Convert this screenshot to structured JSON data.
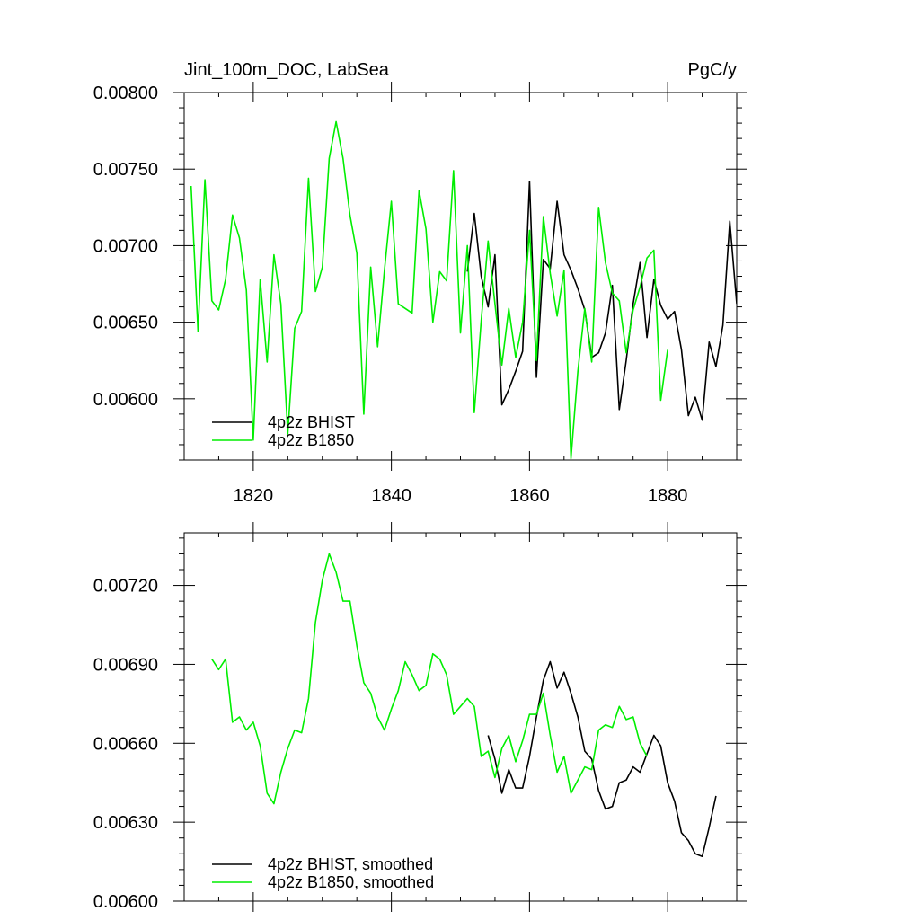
{
  "title_left": "Jint_100m_DOC, LabSea",
  "title_right": "PgC/y",
  "colors": {
    "bhist": "#000000",
    "b1850": "#00ee00"
  },
  "chart_data": [
    {
      "type": "line",
      "title": "Jint_100m_DOC, LabSea",
      "units": "PgC/y",
      "xlim": [
        1810,
        1890
      ],
      "ylim": [
        0.0056,
        0.008
      ],
      "xticks": [
        1820,
        1840,
        1860,
        1880
      ],
      "xtick_labels": [
        "1820",
        "1840",
        "1860",
        "1880"
      ],
      "yticks": [
        0.006,
        0.0065,
        0.007,
        0.0075,
        0.008
      ],
      "ytick_labels": [
        "0.00600",
        "0.00650",
        "0.00700",
        "0.00750",
        "0.00800"
      ],
      "legend_position": "bottom-left",
      "series": [
        {
          "name": "4p2z BHIST",
          "color": "#000000",
          "x": [
            1851,
            1852,
            1853,
            1854,
            1855,
            1856,
            1857,
            1858,
            1859,
            1860,
            1861,
            1862,
            1863,
            1864,
            1865,
            1866,
            1867,
            1868,
            1869,
            1870,
            1871,
            1872,
            1873,
            1874,
            1875,
            1876,
            1877,
            1878,
            1879,
            1880,
            1881,
            1882,
            1883,
            1884,
            1885,
            1886,
            1887,
            1888,
            1889,
            1890
          ],
          "y": [
            0.00683,
            0.00721,
            0.0068,
            0.0066,
            0.00694,
            0.00596,
            0.00606,
            0.00618,
            0.00631,
            0.00742,
            0.00614,
            0.00691,
            0.00685,
            0.00729,
            0.00694,
            0.00684,
            0.00672,
            0.00658,
            0.00627,
            0.0063,
            0.00643,
            0.00674,
            0.00593,
            0.00625,
            0.00662,
            0.00689,
            0.0064,
            0.00678,
            0.00661,
            0.00652,
            0.00657,
            0.00632,
            0.00589,
            0.00601,
            0.00586,
            0.00637,
            0.00621,
            0.00648,
            0.00716,
            0.00662
          ]
        },
        {
          "name": "4p2z B1850",
          "color": "#00ee00",
          "x": [
            1811,
            1812,
            1813,
            1814,
            1815,
            1816,
            1817,
            1818,
            1819,
            1820,
            1821,
            1822,
            1823,
            1824,
            1825,
            1826,
            1827,
            1828,
            1829,
            1830,
            1831,
            1832,
            1833,
            1834,
            1835,
            1836,
            1837,
            1838,
            1839,
            1840,
            1841,
            1842,
            1843,
            1844,
            1845,
            1846,
            1847,
            1848,
            1849,
            1850,
            1851,
            1852,
            1853,
            1854,
            1855,
            1856,
            1857,
            1858,
            1859,
            1860,
            1861,
            1862,
            1863,
            1864,
            1865,
            1866,
            1867,
            1868,
            1869,
            1870,
            1871,
            1872,
            1873,
            1874,
            1875,
            1876,
            1877,
            1878,
            1879,
            1880
          ],
          "y": [
            0.00739,
            0.00644,
            0.00743,
            0.00664,
            0.00658,
            0.00678,
            0.0072,
            0.00705,
            0.00671,
            0.00573,
            0.00678,
            0.00624,
            0.00694,
            0.00662,
            0.00577,
            0.00646,
            0.00657,
            0.00744,
            0.0067,
            0.00686,
            0.00757,
            0.00781,
            0.00757,
            0.0072,
            0.00695,
            0.0059,
            0.00686,
            0.00634,
            0.00684,
            0.00729,
            0.00662,
            0.00659,
            0.00656,
            0.00736,
            0.00711,
            0.0065,
            0.00683,
            0.00677,
            0.00749,
            0.00643,
            0.007,
            0.00591,
            0.00651,
            0.00703,
            0.00662,
            0.00622,
            0.00659,
            0.00627,
            0.0065,
            0.0071,
            0.00625,
            0.00719,
            0.00682,
            0.00654,
            0.00684,
            0.00561,
            0.00618,
            0.00659,
            0.00624,
            0.00725,
            0.00689,
            0.00669,
            0.00664,
            0.0063,
            0.00658,
            0.00673,
            0.00692,
            0.00697,
            0.00599,
            0.00632
          ]
        }
      ]
    },
    {
      "type": "line",
      "xlim": [
        1810,
        1890
      ],
      "ylim": [
        0.006,
        0.0074
      ],
      "xticks": [
        1820,
        1840,
        1860,
        1880
      ],
      "yticks": [
        0.006,
        0.0063,
        0.0066,
        0.0069,
        0.0072
      ],
      "ytick_labels": [
        "0.00600",
        "0.00630",
        "0.00660",
        "0.00690",
        "0.00720"
      ],
      "legend_position": "bottom-left",
      "series": [
        {
          "name": "4p2z BHIST, smoothed",
          "color": "#000000",
          "x": [
            1854,
            1855,
            1856,
            1857,
            1858,
            1859,
            1860,
            1861,
            1862,
            1863,
            1864,
            1865,
            1866,
            1867,
            1868,
            1869,
            1870,
            1871,
            1872,
            1873,
            1874,
            1875,
            1876,
            1877,
            1878,
            1879,
            1880,
            1881,
            1882,
            1883,
            1884,
            1885,
            1886,
            1887
          ],
          "y": [
            0.00663,
            0.00654,
            0.00641,
            0.0065,
            0.00643,
            0.00643,
            0.00655,
            0.0067,
            0.00684,
            0.00691,
            0.00681,
            0.00687,
            0.00679,
            0.0067,
            0.00657,
            0.00654,
            0.00642,
            0.00635,
            0.00636,
            0.00645,
            0.00646,
            0.00651,
            0.00649,
            0.00656,
            0.00663,
            0.00659,
            0.00645,
            0.00638,
            0.00626,
            0.00623,
            0.00618,
            0.00617,
            0.00628,
            0.0064
          ]
        },
        {
          "name": "4p2z B1850, smoothed",
          "color": "#00ee00",
          "x": [
            1814,
            1815,
            1816,
            1817,
            1818,
            1819,
            1820,
            1821,
            1822,
            1823,
            1824,
            1825,
            1826,
            1827,
            1828,
            1829,
            1830,
            1831,
            1832,
            1833,
            1834,
            1835,
            1836,
            1837,
            1838,
            1839,
            1840,
            1841,
            1842,
            1843,
            1844,
            1845,
            1846,
            1847,
            1848,
            1849,
            1850,
            1851,
            1852,
            1853,
            1854,
            1855,
            1856,
            1857,
            1858,
            1859,
            1860,
            1861,
            1862,
            1863,
            1864,
            1865,
            1866,
            1867,
            1868,
            1869,
            1870,
            1871,
            1872,
            1873,
            1874,
            1875,
            1876,
            1877
          ],
          "y": [
            0.00692,
            0.00688,
            0.00692,
            0.00668,
            0.0067,
            0.00665,
            0.00668,
            0.00659,
            0.00641,
            0.00637,
            0.00649,
            0.00658,
            0.00665,
            0.00664,
            0.00677,
            0.00706,
            0.00722,
            0.00732,
            0.00725,
            0.00714,
            0.00714,
            0.00697,
            0.00683,
            0.00679,
            0.0067,
            0.00665,
            0.00673,
            0.0068,
            0.00691,
            0.00686,
            0.0068,
            0.00682,
            0.00694,
            0.00692,
            0.00686,
            0.00671,
            0.00674,
            0.00677,
            0.00674,
            0.00655,
            0.00657,
            0.00647,
            0.00658,
            0.00663,
            0.00653,
            0.00661,
            0.00671,
            0.00671,
            0.00679,
            0.00663,
            0.00649,
            0.00655,
            0.00641,
            0.00646,
            0.00651,
            0.0065,
            0.00665,
            0.00667,
            0.00666,
            0.00674,
            0.00669,
            0.0067,
            0.0066,
            0.00655
          ]
        }
      ]
    }
  ]
}
